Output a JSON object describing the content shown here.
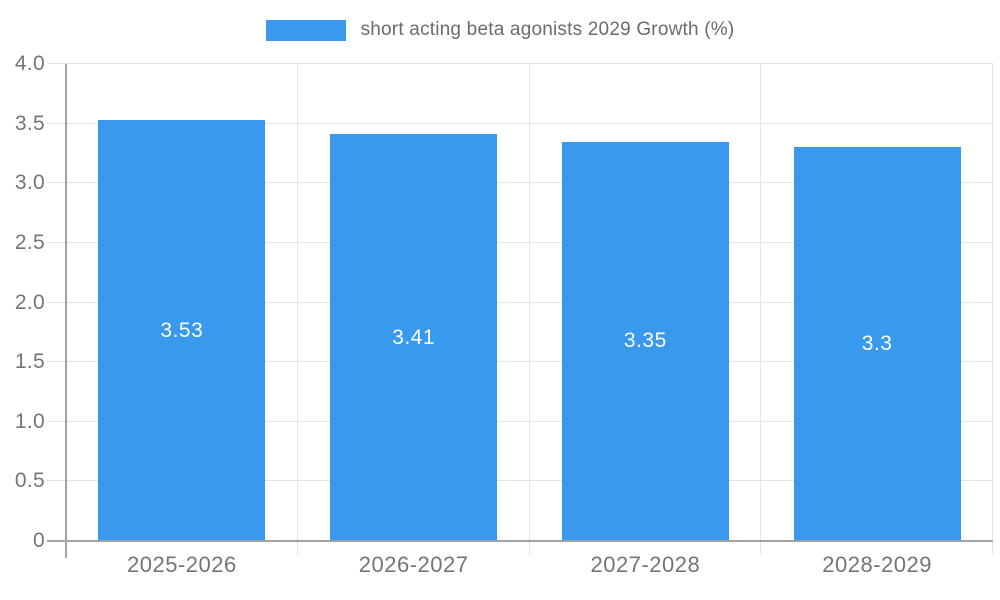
{
  "legend": {
    "label": "short acting beta agonists 2029 Growth (%)"
  },
  "colors": {
    "bar_color": "#3999ec",
    "grid_color": "#e4e4e4",
    "axis_color": "#a3a3a3",
    "tick_text": "#757575",
    "legend_text": "#6b6b6b",
    "bar_label": "#ffffff",
    "page_bg": "#ffffff"
  },
  "chart_data": {
    "type": "bar",
    "title": "short acting beta agonists 2029 Growth (%)",
    "categories": [
      "2025-2026",
      "2026-2027",
      "2027-2028",
      "2028-2029"
    ],
    "values": [
      3.53,
      3.41,
      3.35,
      3.3
    ],
    "bar_labels": [
      "3.53",
      "3.41",
      "3.35",
      "3.3"
    ],
    "xlabel": "",
    "ylabel": "",
    "ylim": [
      0,
      4.0
    ],
    "yticks": [
      0,
      0.5,
      1.0,
      1.5,
      2.0,
      2.5,
      3.0,
      3.5,
      4.0
    ],
    "ytick_labels": [
      "0",
      "0.5",
      "1.0",
      "1.5",
      "2.0",
      "2.5",
      "3.0",
      "3.5",
      "4.0"
    ],
    "grid": true,
    "legend_position": "top-center",
    "bar_color": "#3999ec",
    "value_label_position": "center-of-bar"
  }
}
